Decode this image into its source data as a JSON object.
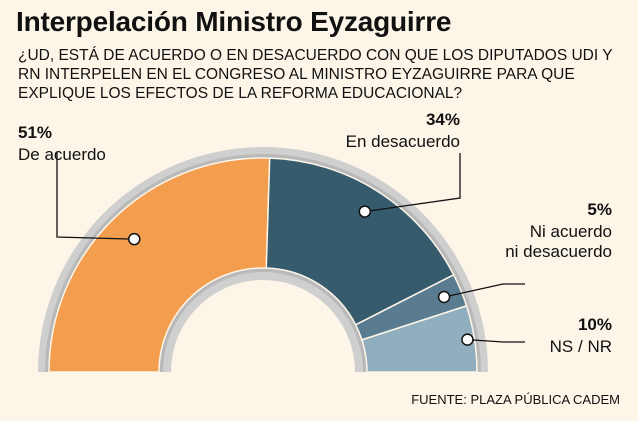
{
  "title": "Interpelación Ministro Eyzaguirre",
  "question": "¿UD, ESTÁ DE ACUERDO O EN DESACUERDO CON QUE LOS DIPUTADOS UDI Y RN INTERPELEN EN EL CONGRESO AL MINISTRO EYZAGUIRRE PARA QUE EXPLIQUE LOS EFECTOS DE LA REFORMA EDUCACIONAL?",
  "source": "FUENTE: PLAZA PÚBLICA CADEM",
  "chart_data": {
    "type": "pie",
    "subtype": "half-donut",
    "categories": [
      "De acuerdo",
      "En desacuerdo",
      "Ni acuerdo ni desacuerdo",
      "NS / NR"
    ],
    "values": [
      51,
      34,
      5,
      10
    ],
    "labels": [
      {
        "pct": "51%",
        "lines": [
          "De acuerdo"
        ]
      },
      {
        "pct": "34%",
        "lines": [
          "En desacuerdo"
        ]
      },
      {
        "pct": "5%",
        "lines": [
          "Ni acuerdo",
          "ni desacuerdo"
        ]
      },
      {
        "pct": "10%",
        "lines": [
          "NS / NR"
        ]
      }
    ],
    "colors": [
      "#f39d4f",
      "#355b6d",
      "#5a7c90",
      "#91aebf"
    ]
  }
}
